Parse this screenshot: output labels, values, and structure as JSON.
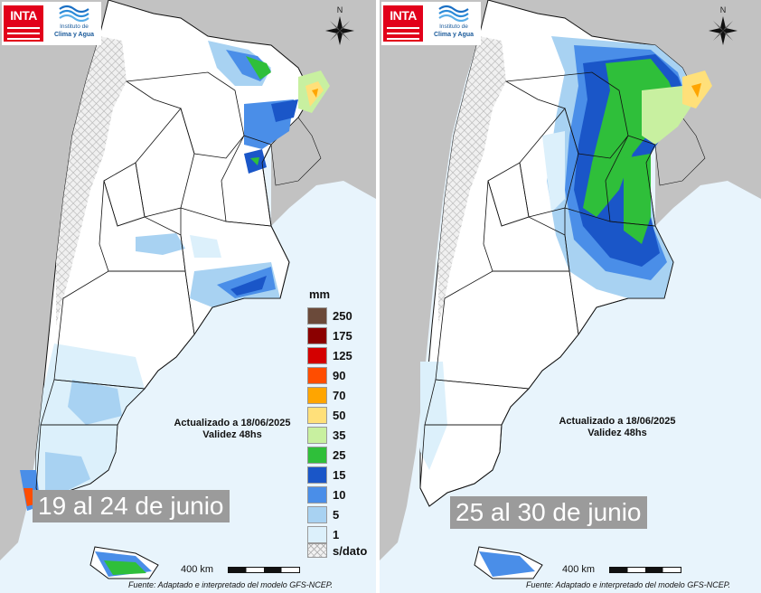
{
  "panels": [
    {
      "id": "left",
      "period_label": "19 al 24 de junio",
      "updated": "Actualizado a 18/06/2025",
      "validity": "Validez 48hs"
    },
    {
      "id": "right",
      "period_label": "25 al 30 de junio",
      "updated": "Actualizado a 18/06/2025",
      "validity": "Validez 48hs"
    }
  ],
  "logos": {
    "inta": "INTA",
    "institute_line1": "Instituto de",
    "institute_line2": "Clima y Agua"
  },
  "compass_letter": "N",
  "legend": {
    "unit": "mm",
    "nodata_label": "s/dato",
    "classes": [
      {
        "label": "250",
        "color": "#6b4a3a"
      },
      {
        "label": "175",
        "color": "#8b0000"
      },
      {
        "label": "125",
        "color": "#d40000"
      },
      {
        "label": "90",
        "color": "#ff4d00"
      },
      {
        "label": "70",
        "color": "#ffa500"
      },
      {
        "label": "50",
        "color": "#ffe07a"
      },
      {
        "label": "35",
        "color": "#c8f0a0"
      },
      {
        "label": "25",
        "color": "#2fbf3a"
      },
      {
        "label": "15",
        "color": "#1a56c8"
      },
      {
        "label": "10",
        "color": "#4a8ee8"
      },
      {
        "label": "5",
        "color": "#a8d2f2"
      },
      {
        "label": "1",
        "color": "#dcf0fb"
      }
    ]
  },
  "scale_label": "400 km",
  "source": "Fuente: Adaptado e interpretado del modelo GFS-NCEP.",
  "colors": {
    "ocean": "#e8f4fc",
    "neighbors": "#c2c2c2",
    "land": "#ffffff",
    "border": "#111111"
  }
}
